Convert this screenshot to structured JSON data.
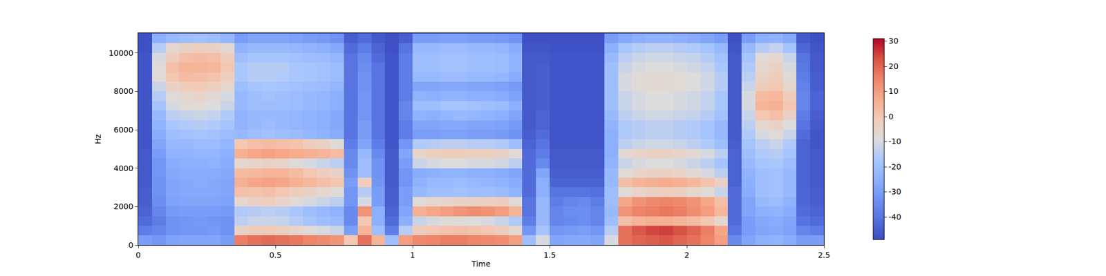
{
  "chart_data": {
    "type": "heatmap",
    "xlabel": "Time",
    "ylabel": "Hz",
    "xlim": [
      0,
      2.5
    ],
    "ylim": [
      0,
      11025
    ],
    "xticks": [
      0,
      0.5,
      1,
      1.5,
      2,
      2.5
    ],
    "yticks": [
      0,
      2000,
      4000,
      6000,
      8000,
      10000
    ],
    "zlim": [
      -49,
      31
    ],
    "zticks": [
      -40,
      -30,
      -20,
      -10,
      0,
      10,
      20,
      30
    ],
    "x": [
      0.025,
      0.075,
      0.125,
      0.175,
      0.225,
      0.275,
      0.325,
      0.375,
      0.425,
      0.475,
      0.525,
      0.575,
      0.625,
      0.675,
      0.725,
      0.775,
      0.825,
      0.875,
      0.925,
      0.975,
      1.025,
      1.075,
      1.125,
      1.175,
      1.225,
      1.275,
      1.325,
      1.375,
      1.425,
      1.475,
      1.525,
      1.575,
      1.625,
      1.675,
      1.725,
      1.775,
      1.825,
      1.875,
      1.925,
      1.975,
      2.025,
      2.075,
      2.125,
      2.175,
      2.225,
      2.275,
      2.325,
      2.375,
      2.425,
      2.475
    ],
    "y": [
      250,
      750,
      1250,
      1750,
      2250,
      2750,
      3250,
      3750,
      4250,
      4750,
      5250,
      5750,
      6250,
      6750,
      7250,
      7750,
      8250,
      8750,
      9250,
      9750,
      10250,
      10750
    ],
    "cells": [
      [
        -30,
        -38,
        -42,
        -44,
        -45,
        -45,
        -46,
        -46,
        -46,
        -46,
        -47,
        -47,
        -47,
        -47,
        -47,
        -47,
        -47,
        -47,
        -47,
        -47,
        -48,
        -48
      ],
      [
        -32,
        -36,
        -38,
        -36,
        -34,
        -33,
        -33,
        -32,
        -32,
        -30,
        -28,
        -26,
        -24,
        -22,
        -18,
        -15,
        -12,
        -8,
        -8,
        -10,
        -15,
        -25
      ],
      [
        -29,
        -33,
        -33,
        -31,
        -29,
        -28,
        -28,
        -27,
        -26,
        -24,
        -22,
        -20,
        -17,
        -14,
        -10,
        -8,
        -4,
        0,
        2,
        -2,
        -6,
        -22
      ],
      [
        -28,
        -32,
        -32,
        -30,
        -28,
        -27,
        -27,
        -26,
        -25,
        -24,
        -22,
        -19,
        -16,
        -13,
        -8,
        -6,
        -2,
        3,
        5,
        2,
        -4,
        -20
      ],
      [
        -28,
        -32,
        -31,
        -30,
        -28,
        -27,
        -26,
        -26,
        -25,
        -23,
        -21,
        -18,
        -15,
        -12,
        -8,
        -5,
        -1,
        2,
        5,
        3,
        -3,
        -19
      ],
      [
        -28,
        -31,
        -32,
        -30,
        -28,
        -27,
        -27,
        -26,
        -24,
        -23,
        -21,
        -19,
        -16,
        -13,
        -9,
        -7,
        -3,
        1,
        4,
        2,
        -4,
        -20
      ],
      [
        -30,
        -33,
        -33,
        -31,
        -29,
        -28,
        -28,
        -27,
        -26,
        -25,
        -23,
        -21,
        -18,
        -16,
        -12,
        -10,
        -6,
        -3,
        0,
        -2,
        -7,
        -23
      ],
      [
        16,
        -4,
        -14,
        -16,
        -6,
        2,
        6,
        3,
        -6,
        6,
        0,
        -22,
        -24,
        -24,
        -22,
        -22,
        -20,
        -17,
        -17,
        -20,
        -24,
        -30
      ],
      [
        18,
        -2,
        -12,
        -15,
        -4,
        1,
        8,
        4,
        -5,
        8,
        2,
        -20,
        -22,
        -22,
        -20,
        -20,
        -18,
        -15,
        -15,
        -18,
        -22,
        -28
      ],
      [
        19,
        -1,
        -12,
        -14,
        -3,
        2,
        9,
        5,
        -4,
        9,
        3,
        -19,
        -21,
        -22,
        -20,
        -19,
        -17,
        -15,
        -15,
        -18,
        -22,
        -28
      ],
      [
        18,
        -3,
        -13,
        -15,
        -5,
        0,
        8,
        5,
        -5,
        8,
        2,
        -20,
        -22,
        -22,
        -20,
        -20,
        -18,
        -16,
        -15,
        -18,
        -22,
        -28
      ],
      [
        17,
        -5,
        -15,
        -17,
        -8,
        -2,
        6,
        3,
        -8,
        7,
        1,
        -21,
        -23,
        -23,
        -21,
        -21,
        -19,
        -17,
        -17,
        -19,
        -23,
        -29
      ],
      [
        15,
        -8,
        -18,
        -20,
        -10,
        -4,
        4,
        0,
        -10,
        6,
        -2,
        -23,
        -24,
        -24,
        -22,
        -22,
        -20,
        -18,
        -18,
        -20,
        -24,
        -30
      ],
      [
        14,
        -10,
        -20,
        -22,
        -12,
        -6,
        2,
        -2,
        -12,
        5,
        -4,
        -24,
        -25,
        -25,
        -23,
        -23,
        -21,
        -19,
        -19,
        -21,
        -25,
        -31
      ],
      [
        12,
        -12,
        -22,
        -24,
        -14,
        -8,
        0,
        -4,
        -14,
        3,
        -8,
        -26,
        -27,
        -27,
        -25,
        -25,
        -23,
        -21,
        -21,
        -23,
        -27,
        -33
      ],
      [
        0,
        -30,
        -35,
        -35,
        -32,
        -32,
        -30,
        -33,
        -35,
        -35,
        -38,
        -40,
        -40,
        -40,
        -40,
        -40,
        -40,
        -40,
        -40,
        -40,
        -42,
        -45
      ],
      [
        18,
        5,
        0,
        12,
        -10,
        -15,
        -2,
        -20,
        -20,
        -22,
        -28,
        -30,
        -30,
        -32,
        -32,
        -32,
        -33,
        -33,
        -34,
        -35,
        -38,
        -42
      ],
      [
        5,
        -20,
        -25,
        -25,
        -30,
        -30,
        -32,
        -33,
        -33,
        -35,
        -38,
        -40,
        -40,
        -40,
        -40,
        -40,
        -40,
        -40,
        -40,
        -42,
        -44,
        -46
      ],
      [
        -20,
        -38,
        -42,
        -44,
        -45,
        -45,
        -46,
        -46,
        -46,
        -46,
        -47,
        -47,
        -47,
        -47,
        -47,
        -47,
        -47,
        -47,
        -47,
        -47,
        -48,
        -48
      ],
      [
        10,
        -15,
        -25,
        -28,
        -30,
        -30,
        -32,
        -32,
        -30,
        -28,
        -32,
        -38,
        -38,
        -36,
        -36,
        -38,
        -38,
        -38,
        -38,
        -38,
        -40,
        -45
      ],
      [
        14,
        -2,
        -12,
        6,
        -8,
        -22,
        -24,
        -26,
        -12,
        -5,
        -16,
        -30,
        -28,
        -24,
        -20,
        -24,
        -28,
        -22,
        -20,
        -20,
        -22,
        -30
      ],
      [
        15,
        0,
        -10,
        8,
        -6,
        -20,
        -22,
        -25,
        -10,
        -3,
        -15,
        -30,
        -28,
        -25,
        -20,
        -25,
        -28,
        -22,
        -20,
        -20,
        -22,
        -30
      ],
      [
        16,
        1,
        -8,
        10,
        -5,
        -20,
        -22,
        -24,
        -9,
        -2,
        -14,
        -29,
        -27,
        -23,
        -18,
        -24,
        -27,
        -21,
        -19,
        -19,
        -21,
        -29
      ],
      [
        16,
        2,
        -8,
        12,
        -4,
        -19,
        -21,
        -24,
        -9,
        -2,
        -14,
        -29,
        -27,
        -22,
        -18,
        -24,
        -27,
        -21,
        -19,
        -19,
        -21,
        -29
      ],
      [
        15,
        1,
        -9,
        13,
        -4,
        -20,
        -22,
        -25,
        -10,
        -3,
        -15,
        -30,
        -28,
        -23,
        -19,
        -25,
        -28,
        -22,
        -20,
        -20,
        -22,
        -30
      ],
      [
        14,
        0,
        -10,
        12,
        -3,
        -20,
        -23,
        -25,
        -10,
        -3,
        -15,
        -30,
        -28,
        -24,
        -20,
        -25,
        -28,
        -22,
        -20,
        -20,
        -22,
        -30
      ],
      [
        13,
        -2,
        -12,
        10,
        -2,
        -21,
        -24,
        -26,
        -11,
        -4,
        -16,
        -31,
        -29,
        -25,
        -21,
        -26,
        -29,
        -23,
        -21,
        -21,
        -23,
        -31
      ],
      [
        10,
        -6,
        -16,
        5,
        -8,
        -24,
        -26,
        -28,
        -14,
        -8,
        -20,
        -33,
        -31,
        -28,
        -25,
        -29,
        -31,
        -26,
        -24,
        -24,
        -26,
        -33
      ],
      [
        -20,
        -32,
        -38,
        -40,
        -40,
        -42,
        -42,
        -42,
        -42,
        -42,
        -44,
        -45,
        -46,
        -46,
        -46,
        -46,
        -46,
        -46,
        -46,
        -46,
        -47,
        -48
      ],
      [
        -10,
        -18,
        -22,
        -22,
        -22,
        -25,
        -25,
        -28,
        -35,
        -38,
        -40,
        -42,
        -44,
        -44,
        -45,
        -45,
        -45,
        -45,
        -45,
        -46,
        -47,
        -48
      ],
      [
        -28,
        -32,
        -36,
        -36,
        -38,
        -40,
        -44,
        -45,
        -46,
        -46,
        -47,
        -47,
        -47,
        -47,
        -47,
        -47,
        -47,
        -47,
        -47,
        -47,
        -48,
        -48
      ],
      [
        -27,
        -31,
        -35,
        -34,
        -36,
        -40,
        -44,
        -45,
        -46,
        -46,
        -47,
        -47,
        -47,
        -47,
        -47,
        -47,
        -47,
        -47,
        -47,
        -47,
        -48,
        -48
      ],
      [
        -27,
        -30,
        -34,
        -34,
        -35,
        -40,
        -44,
        -45,
        -46,
        -46,
        -47,
        -47,
        -47,
        -47,
        -47,
        -47,
        -47,
        -47,
        -47,
        -47,
        -48,
        -48
      ],
      [
        -28,
        -32,
        -36,
        -36,
        -38,
        -41,
        -44,
        -45,
        -46,
        -46,
        -47,
        -47,
        -47,
        -47,
        -47,
        -47,
        -47,
        -47,
        -47,
        -47,
        -48,
        -48
      ],
      [
        -10,
        -15,
        -20,
        -22,
        -20,
        -20,
        -22,
        -22,
        -24,
        -25,
        -25,
        -25,
        -24,
        -22,
        -20,
        -20,
        -20,
        -20,
        -20,
        -22,
        -25,
        -30
      ],
      [
        18,
        18,
        2,
        12,
        8,
        -8,
        2,
        -8,
        -12,
        -7,
        -14,
        -16,
        -16,
        -14,
        -12,
        -12,
        -10,
        -10,
        -12,
        -14,
        -17,
        -27
      ],
      [
        20,
        22,
        5,
        15,
        12,
        -5,
        5,
        -5,
        -10,
        -5,
        -12,
        -15,
        -15,
        -12,
        -10,
        -10,
        -8,
        -8,
        -10,
        -12,
        -15,
        -25
      ],
      [
        21,
        24,
        6,
        16,
        14,
        -4,
        6,
        -4,
        -9,
        -4,
        -11,
        -14,
        -14,
        -11,
        -9,
        -9,
        -7,
        -7,
        -9,
        -11,
        -14,
        -24
      ],
      [
        22,
        25,
        6,
        17,
        15,
        -3,
        7,
        -4,
        -9,
        -4,
        -11,
        -14,
        -14,
        -11,
        -9,
        -9,
        -7,
        -7,
        -9,
        -11,
        -14,
        -24
      ],
      [
        20,
        23,
        5,
        16,
        14,
        -4,
        6,
        -5,
        -10,
        -5,
        -12,
        -15,
        -15,
        -12,
        -10,
        -10,
        -8,
        -8,
        -10,
        -12,
        -15,
        -25
      ],
      [
        18,
        20,
        3,
        13,
        12,
        -6,
        4,
        -7,
        -12,
        -7,
        -14,
        -16,
        -16,
        -13,
        -11,
        -11,
        -9,
        -9,
        -11,
        -13,
        -16,
        -26
      ],
      [
        15,
        16,
        0,
        10,
        8,
        -8,
        1,
        -10,
        -14,
        -10,
        -16,
        -18,
        -18,
        -15,
        -13,
        -13,
        -11,
        -11,
        -13,
        -15,
        -18,
        -28
      ],
      [
        10,
        8,
        -6,
        4,
        2,
        -12,
        -4,
        -14,
        -18,
        -14,
        -20,
        -22,
        -22,
        -19,
        -17,
        -17,
        -15,
        -15,
        -17,
        -19,
        -22,
        -30
      ],
      [
        -35,
        -40,
        -42,
        -42,
        -42,
        -42,
        -44,
        -44,
        -44,
        -44,
        -45,
        -46,
        -46,
        -46,
        -46,
        -46,
        -46,
        -46,
        -46,
        -46,
        -47,
        -48
      ],
      [
        -28,
        -30,
        -30,
        -28,
        -28,
        -26,
        -25,
        -24,
        -22,
        -20,
        -18,
        -16,
        -14,
        -12,
        -10,
        -10,
        -12,
        -14,
        -16,
        -18,
        -22,
        -30
      ],
      [
        -25,
        -28,
        -27,
        -25,
        -22,
        -20,
        -20,
        -20,
        -18,
        -16,
        -14,
        -10,
        -6,
        0,
        5,
        3,
        -2,
        -4,
        -6,
        -8,
        -15,
        -25
      ],
      [
        -24,
        -27,
        -26,
        -24,
        -21,
        -19,
        -19,
        -19,
        -17,
        -15,
        -12,
        -8,
        -4,
        2,
        6,
        4,
        0,
        -2,
        -4,
        -6,
        -13,
        -24
      ],
      [
        -26,
        -29,
        -28,
        -26,
        -24,
        -22,
        -22,
        -22,
        -20,
        -18,
        -16,
        -12,
        -9,
        -4,
        0,
        -2,
        -6,
        -8,
        -10,
        -12,
        -18,
        -27
      ],
      [
        -30,
        -36,
        -40,
        -42,
        -43,
        -43,
        -44,
        -44,
        -44,
        -44,
        -44,
        -42,
        -40,
        -38,
        -36,
        -36,
        -37,
        -38,
        -39,
        -40,
        -43,
        -46
      ],
      [
        -30,
        -38,
        -42,
        -44,
        -45,
        -45,
        -46,
        -46,
        -46,
        -46,
        -47,
        -47,
        -46,
        -45,
        -44,
        -44,
        -45,
        -45,
        -46,
        -46,
        -47,
        -48
      ]
    ]
  }
}
